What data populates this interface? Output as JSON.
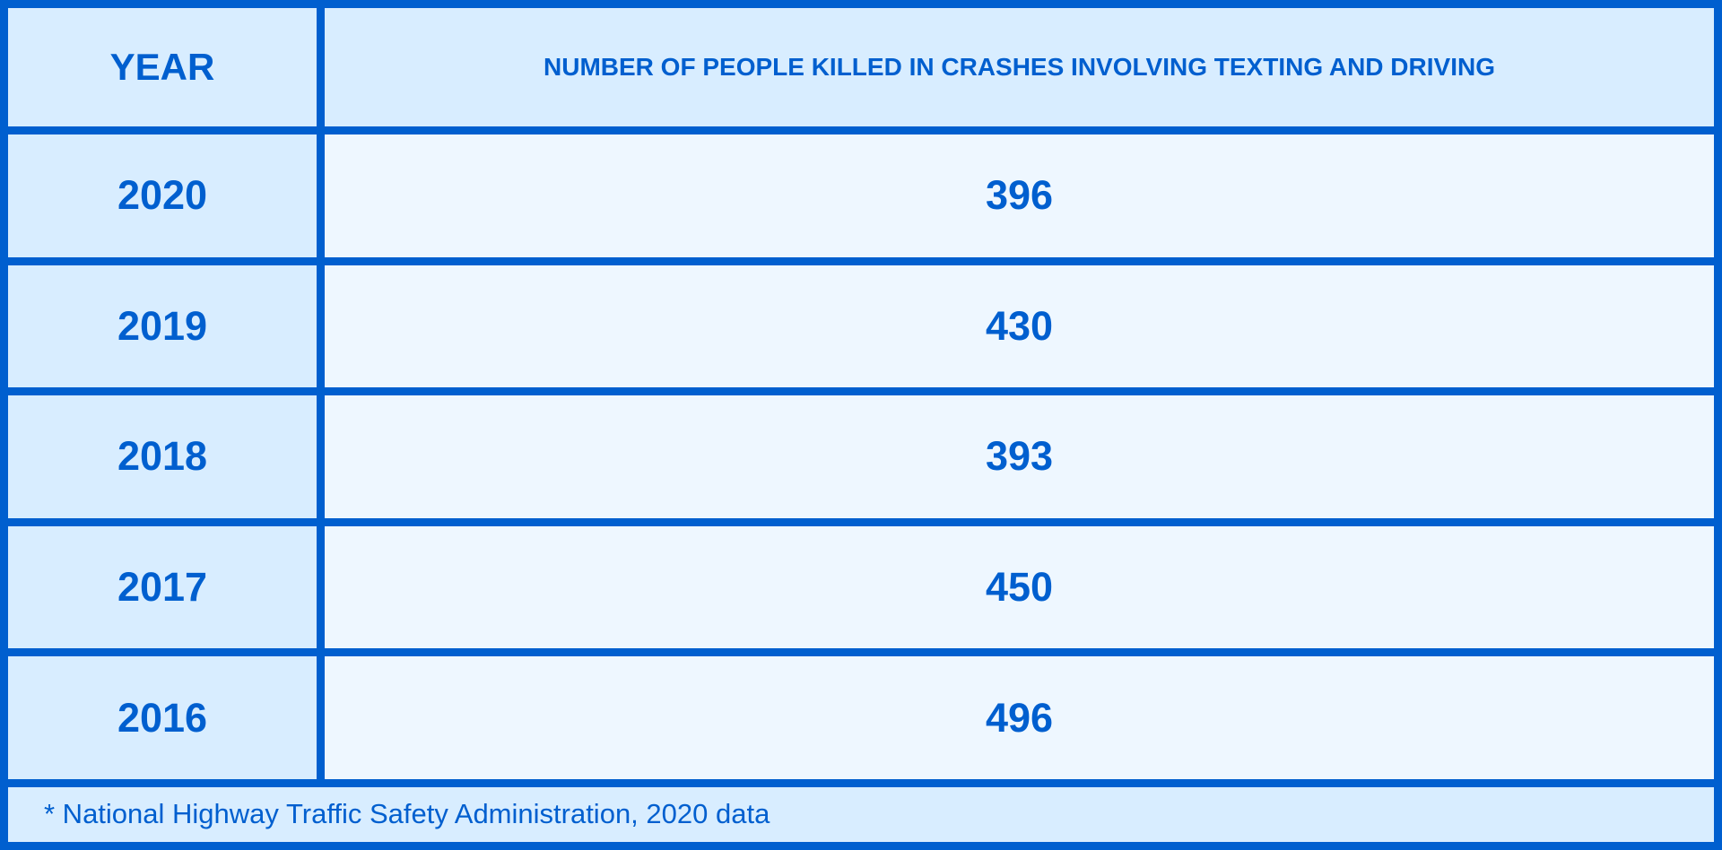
{
  "table": {
    "headers": [
      "YEAR",
      "NUMBER OF PEOPLE KILLED IN CRASHES INVOLVING TEXTING AND DRIVING"
    ],
    "rows": [
      {
        "year": "2020",
        "value": "396"
      },
      {
        "year": "2019",
        "value": "430"
      },
      {
        "year": "2018",
        "value": "393"
      },
      {
        "year": "2017",
        "value": "450"
      },
      {
        "year": "2016",
        "value": "496"
      }
    ],
    "footnote": "*  National Highway Traffic Safety Administration, 2020 data"
  },
  "colors": {
    "border": "#005fcf",
    "header_bg": "#d8edff",
    "value_bg": "#eef7ff",
    "text": "#005fcf"
  }
}
